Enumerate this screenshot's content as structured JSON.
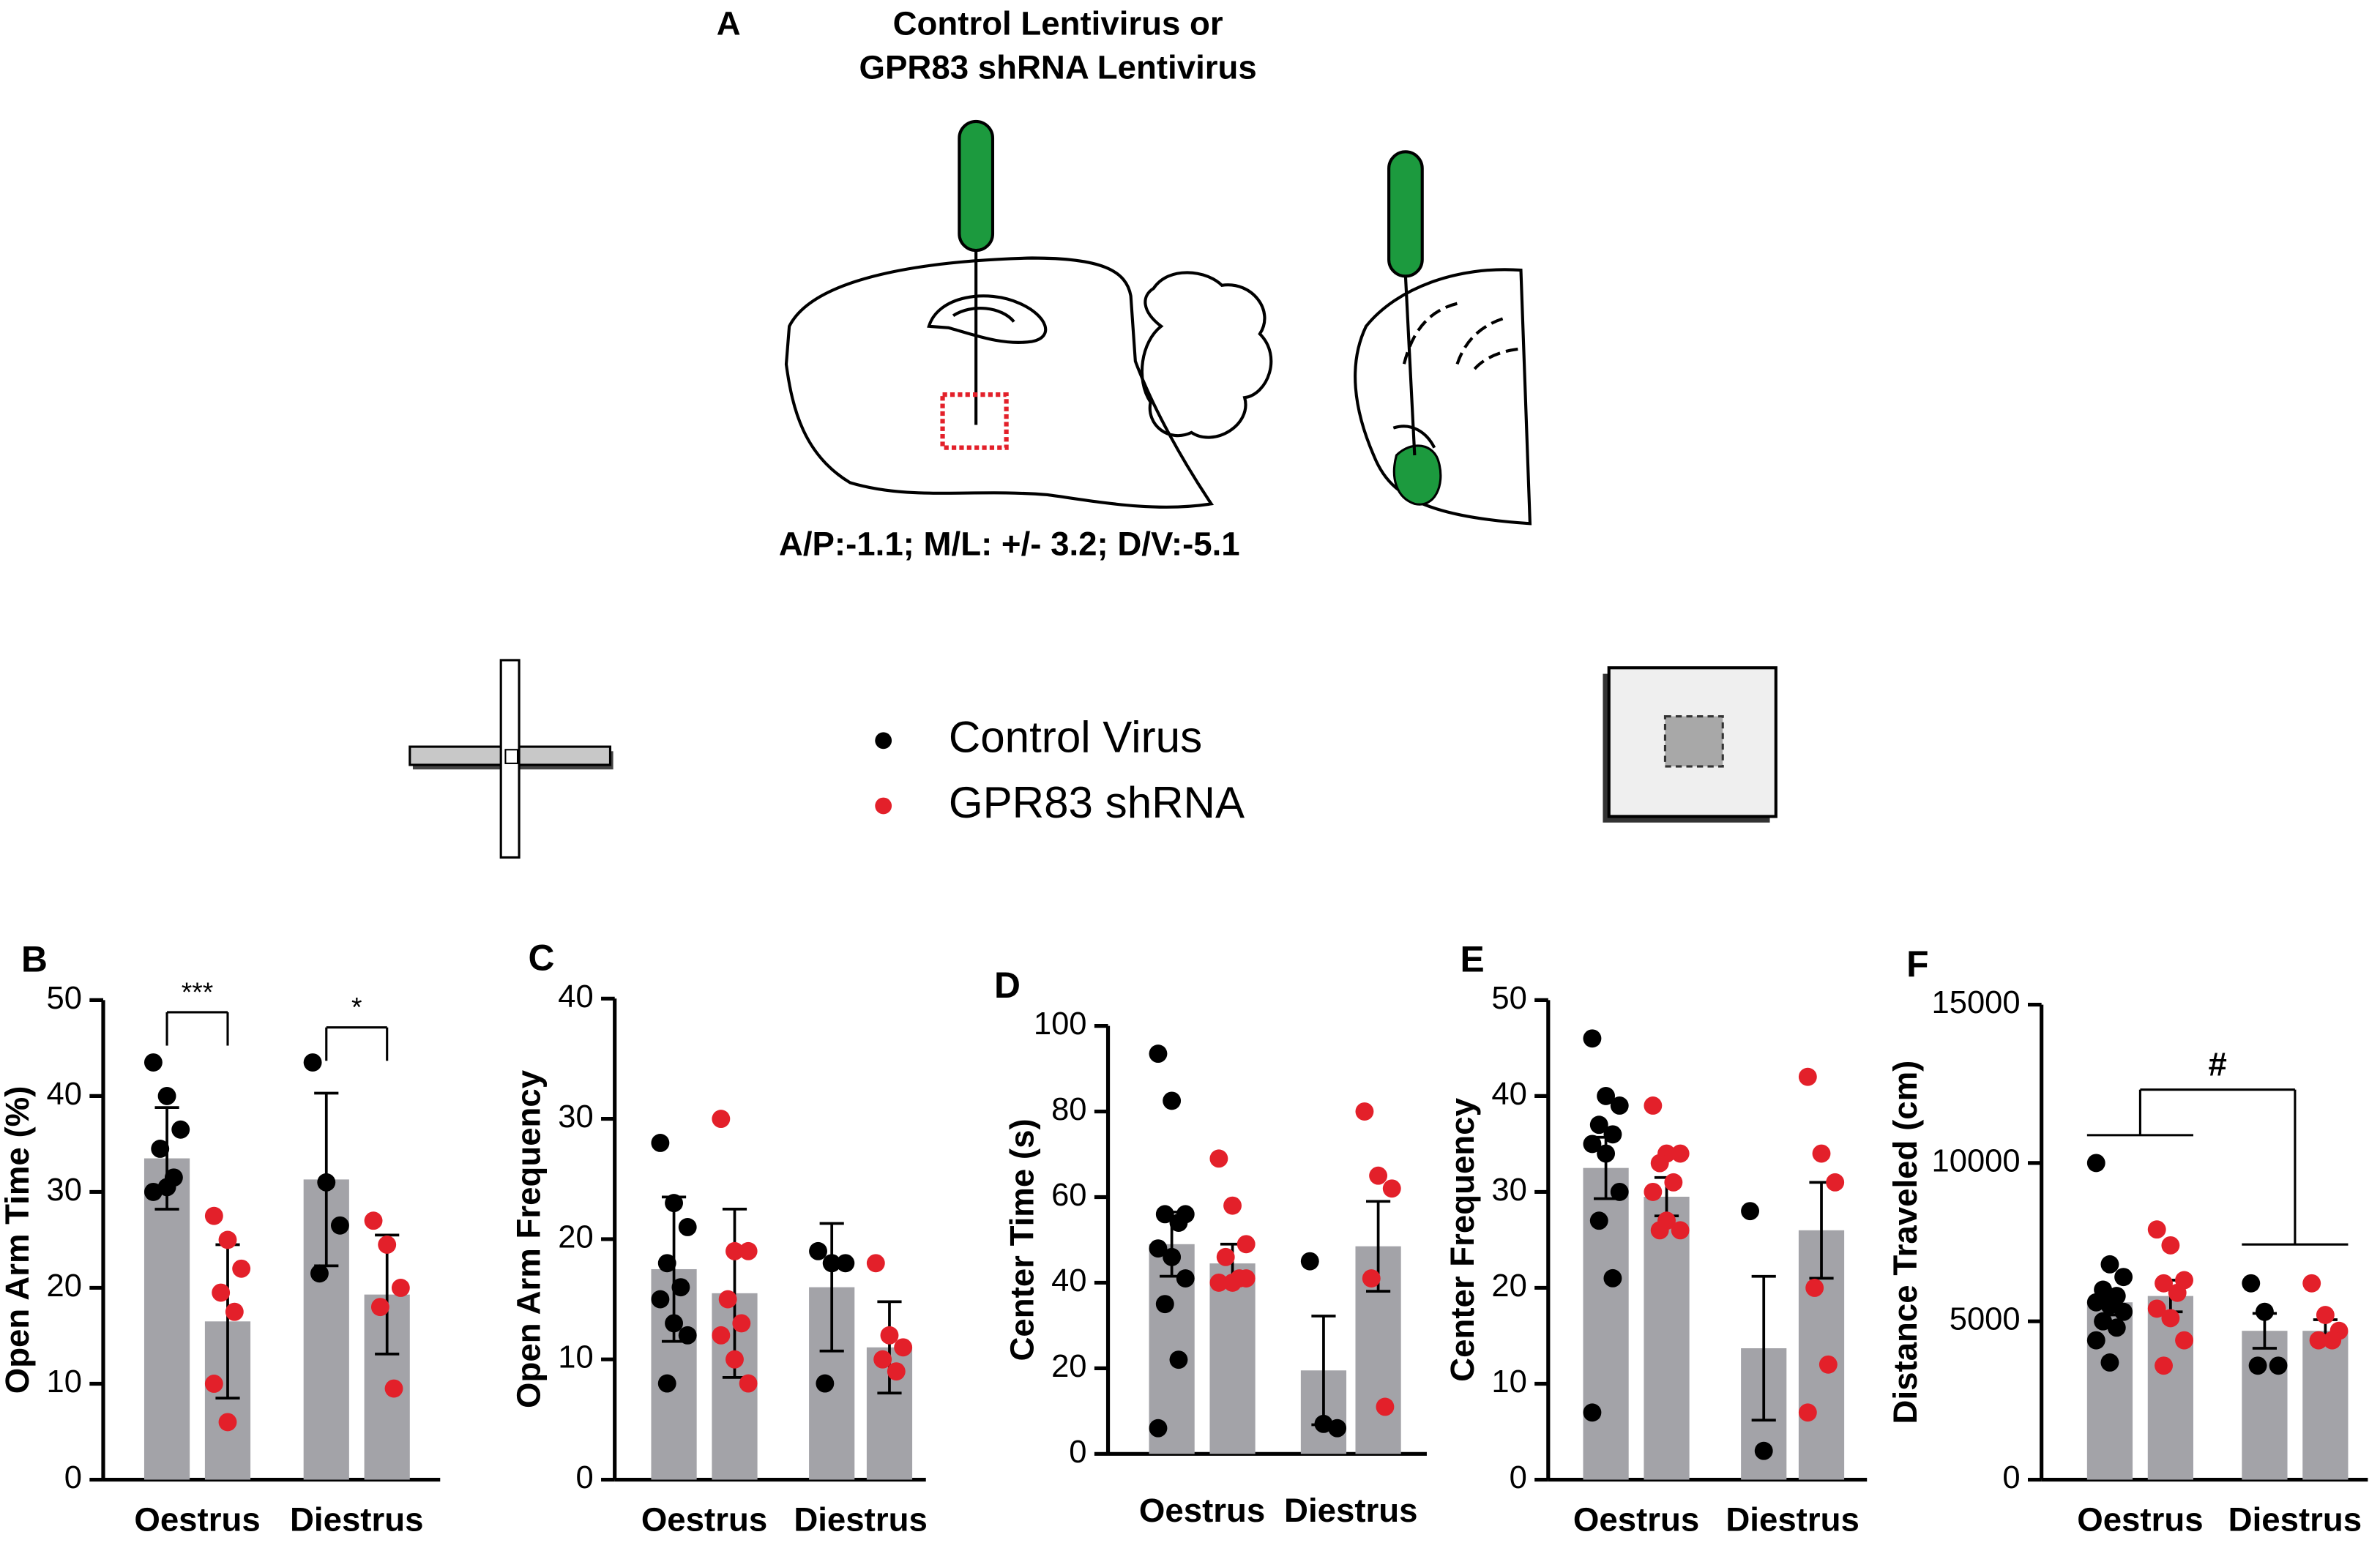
{
  "figure": {
    "panel_a": {
      "label": "A",
      "title": [
        "Control Lentivirus  or",
        "GPR83 shRNA Lentivirus"
      ],
      "coordinates": "A/P:-1.1; M/L: +/- 3.2; D/V:-5.1"
    },
    "legend": [
      {
        "name": "Control Virus",
        "color": "#000000"
      },
      {
        "name": "GPR83 shRNA",
        "color": "#e3202a"
      }
    ]
  },
  "chart_data": [
    {
      "type": "bar",
      "panel": "B",
      "y_label": "Open Arm Time (%)",
      "categories": [
        "Oestrus",
        "Diestrus"
      ],
      "ylim": [
        0,
        50
      ],
      "yticks": [
        0,
        10,
        20,
        30,
        40,
        50
      ],
      "bar_color": "#a3a3a8",
      "series": [
        {
          "values": [
            33.5,
            31.3
          ],
          "errors": [
            5.3,
            9
          ],
          "points": [
            [
              43.5,
              40,
              36.5,
              34.5,
              31.5,
              30,
              30.5
            ],
            [
              43.5,
              31,
              26.5,
              21.5
            ]
          ]
        },
        {
          "values": [
            16.5,
            19.3
          ],
          "errors": [
            8,
            6.2
          ],
          "points": [
            [
              27.5,
              25,
              22,
              19.5,
              17.5,
              10,
              6
            ],
            [
              27,
              24.5,
              20,
              18,
              9.5
            ]
          ]
        }
      ],
      "annotations": [
        "***",
        "*"
      ]
    },
    {
      "type": "bar",
      "panel": "C",
      "y_label": "Open Arm Frequency",
      "categories": [
        "Oestrus",
        "Diestrus"
      ],
      "ylim": [
        0,
        40
      ],
      "yticks": [
        0,
        10,
        20,
        30,
        40
      ],
      "bar_color": "#a3a3a8",
      "series": [
        {
          "values": [
            17.5,
            16
          ],
          "errors": [
            6,
            5.3
          ],
          "points": [
            [
              28,
              23,
              21,
              18,
              16,
              15,
              13,
              12,
              8
            ],
            [
              19,
              18,
              18,
              8
            ]
          ]
        },
        {
          "values": [
            15.5,
            11
          ],
          "errors": [
            7,
            3.8
          ],
          "points": [
            [
              30,
              19,
              19,
              15,
              13,
              12,
              10,
              8
            ],
            [
              18,
              12,
              11,
              10,
              9
            ]
          ]
        }
      ]
    },
    {
      "type": "bar",
      "panel": "D",
      "y_label": "Center Time (s)",
      "categories": [
        "Oestrus",
        "Diestrus"
      ],
      "ylim": [
        0,
        100
      ],
      "yticks": [
        0,
        20,
        40,
        60,
        80,
        100
      ],
      "bar_color": "#a3a3a8",
      "series": [
        {
          "values": [
            49,
            19.5
          ],
          "errors": [
            7.5,
            12.7
          ],
          "points": [
            [
              93.5,
              82.5,
              56,
              56,
              54,
              48,
              46,
              41,
              35,
              22,
              6
            ],
            [
              45,
              7,
              6
            ]
          ]
        },
        {
          "values": [
            44.5,
            48.5
          ],
          "errors": [
            4.5,
            10.5
          ],
          "points": [
            [
              69,
              58,
              49,
              46,
              41,
              40,
              40,
              41
            ],
            [
              80,
              65,
              62,
              41,
              11
            ]
          ]
        }
      ]
    },
    {
      "type": "bar",
      "panel": "E",
      "y_label": "Center Frequency",
      "categories": [
        "Oestrus",
        "Diestrus"
      ],
      "ylim": [
        0,
        50
      ],
      "yticks": [
        0,
        10,
        20,
        30,
        40,
        50
      ],
      "bar_color": "#a3a3a8",
      "series": [
        {
          "values": [
            32.5,
            13.7
          ],
          "errors": [
            3.2,
            7.5
          ],
          "points": [
            [
              46,
              40,
              39,
              37,
              36,
              35,
              34,
              30,
              27,
              21,
              7
            ],
            [
              28,
              3
            ]
          ]
        },
        {
          "values": [
            29.5,
            26
          ],
          "errors": [
            2,
            5
          ],
          "points": [
            [
              39,
              34,
              34,
              33,
              31,
              30,
              27,
              26,
              26
            ],
            [
              42,
              34,
              31,
              20,
              12,
              7
            ]
          ]
        }
      ]
    },
    {
      "type": "bar",
      "panel": "F",
      "y_label": "Distance Traveled (cm)",
      "categories": [
        "Oestrus",
        "Diestrus"
      ],
      "ylim": [
        0,
        15000
      ],
      "yticks": [
        0,
        5000,
        10000,
        15000
      ],
      "bar_color": "#a3a3a8",
      "series": [
        {
          "values": [
            5600,
            4700
          ],
          "errors": [
            400,
            550
          ],
          "points": [
            [
              10000,
              6800,
              6400,
              6000,
              5800,
              5600,
              5500,
              5300,
              5000,
              4800,
              4400,
              3700
            ],
            [
              6200,
              5300,
              3600,
              3600
            ]
          ]
        },
        {
          "values": [
            5800,
            4700
          ],
          "errors": [
            500,
            350
          ],
          "points": [
            [
              7900,
              7400,
              6300,
              6200,
              5900,
              5400,
              5100,
              4400,
              3600
            ],
            [
              6200,
              5200,
              4700,
              4400,
              4400
            ]
          ]
        }
      ],
      "annotations": [
        "#"
      ]
    }
  ]
}
